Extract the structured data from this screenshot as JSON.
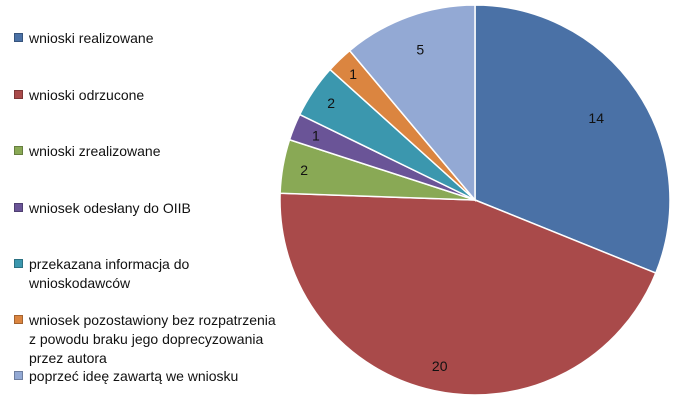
{
  "chart_data": {
    "type": "pie",
    "title": "",
    "categories": [
      "wnioski realizowane",
      "wnioski odrzucone",
      "wnioski zrealizowane",
      "wniosek odesłany do OIIB",
      "przekazana informacja do wnioskodawców",
      "wniosek pozostawiony bez rozpatrzenia z powodu braku jego doprecyzowania przez autora",
      "poprzeć ideę zawartą we wniosku"
    ],
    "values": [
      14,
      20,
      2,
      1,
      2,
      1,
      5
    ],
    "data_labels": [
      "14",
      "20",
      "2",
      "1",
      "2",
      "1",
      "5"
    ],
    "colors": [
      "#4a71a6",
      "#a94a4a",
      "#89a955",
      "#6a5497",
      "#3b97ae",
      "#db8540",
      "#93a9d4"
    ],
    "start_angle_deg": 0,
    "direction": "clockwise",
    "legend_position": "left"
  },
  "legend": {
    "items": [
      {
        "label": "wnioski realizowane",
        "color": "#4a71a6"
      },
      {
        "label": "wnioski odrzucone",
        "color": "#a94a4a"
      },
      {
        "label": "wnioski zrealizowane",
        "color": "#89a955"
      },
      {
        "label": "wniosek odesłany do OIIB",
        "color": "#6a5497"
      },
      {
        "label": "przekazana informacja do\nwnioskodawców",
        "color": "#3b97ae"
      },
      {
        "label": "wniosek pozostawiony bez rozpatrzenia\nz powodu braku jego doprecyzowania\nprzez autora",
        "color": "#db8540"
      },
      {
        "label": "poprzeć ideę zawartą we wniosku",
        "color": "#93a9d4"
      }
    ]
  }
}
